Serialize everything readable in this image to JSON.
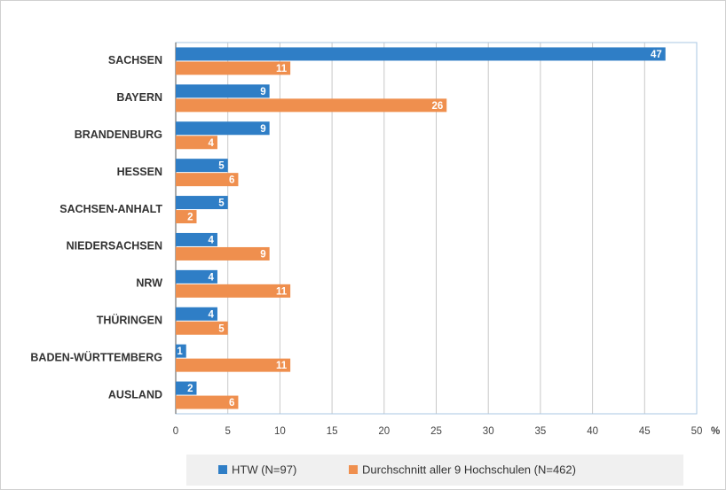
{
  "chart_data": {
    "type": "hbar",
    "categories": [
      "SACHSEN",
      "BAYERN",
      "BRANDENBURG",
      "HESSEN",
      "SACHSEN-ANHALT",
      "NIEDERSACHSEN",
      "NRW",
      "THÜRINGEN",
      "BADEN-WÜRTTEMBERG",
      "AUSLAND"
    ],
    "series": [
      {
        "name": "HTW (N=97)",
        "color": "#2f7ec6",
        "values": [
          47,
          9,
          9,
          5,
          5,
          4,
          4,
          4,
          1,
          2
        ]
      },
      {
        "name": "Durchschnitt aller 9 Hochschulen (N=462)",
        "color": "#ef8f4e",
        "values": [
          11,
          26,
          4,
          6,
          2,
          9,
          11,
          5,
          11,
          6
        ]
      }
    ],
    "xlabel": "%",
    "xlim": [
      0,
      50
    ],
    "xticks": [
      0,
      5,
      10,
      15,
      20,
      25,
      30,
      35,
      40,
      45,
      50
    ],
    "grid": true,
    "legend": "bottom"
  }
}
